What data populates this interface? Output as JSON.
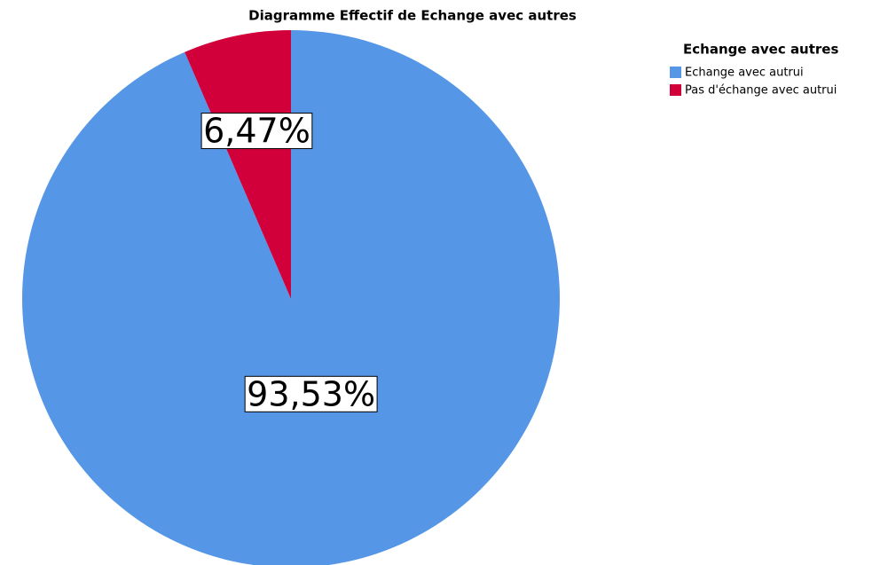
{
  "chart_data": {
    "type": "pie",
    "title": "Diagramme Effectif de Echange avec autres",
    "legend_title": "Echange avec autres",
    "legend": "right",
    "categories": [
      "Echange avec autrui",
      "Pas d'échange avec autrui"
    ],
    "values": [
      93.53,
      6.47
    ],
    "value_labels": [
      "93,53%",
      "6,47%"
    ],
    "colors": [
      "#5596e6",
      "#d1003a"
    ]
  }
}
